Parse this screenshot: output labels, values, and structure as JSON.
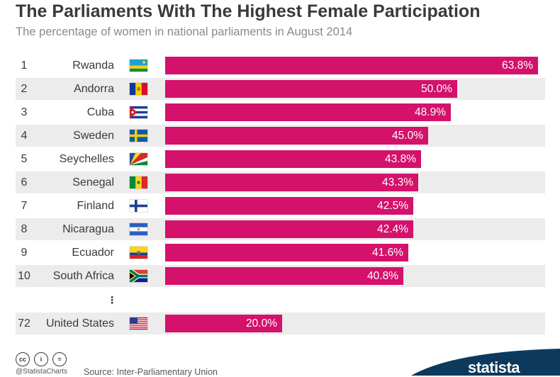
{
  "chart_data": {
    "type": "bar",
    "orientation": "horizontal",
    "title": "The Parliaments With The Highest Female Participation",
    "subtitle": "The percentage of women in national parliaments in August 2014",
    "rows": [
      {
        "rank": "1",
        "country": "Rwanda",
        "flag": "rwanda-flag-icon",
        "value": 63.8,
        "label": "63.8%"
      },
      {
        "rank": "2",
        "country": "Andorra",
        "flag": "andorra-flag-icon",
        "value": 50.0,
        "label": "50.0%"
      },
      {
        "rank": "3",
        "country": "Cuba",
        "flag": "cuba-flag-icon",
        "value": 48.9,
        "label": "48.9%"
      },
      {
        "rank": "4",
        "country": "Sweden",
        "flag": "sweden-flag-icon",
        "value": 45.0,
        "label": "45.0%"
      },
      {
        "rank": "5",
        "country": "Seychelles",
        "flag": "seychelles-flag-icon",
        "value": 43.8,
        "label": "43.8%"
      },
      {
        "rank": "6",
        "country": "Senegal",
        "flag": "senegal-flag-icon",
        "value": 43.3,
        "label": "43.3%"
      },
      {
        "rank": "7",
        "country": "Finland",
        "flag": "finland-flag-icon",
        "value": 42.5,
        "label": "42.5%"
      },
      {
        "rank": "8",
        "country": "Nicaragua",
        "flag": "nicaragua-flag-icon",
        "value": 42.4,
        "label": "42.4%"
      },
      {
        "rank": "9",
        "country": "Ecuador",
        "flag": "ecuador-flag-icon",
        "value": 41.6,
        "label": "41.6%"
      },
      {
        "rank": "10",
        "country": "South Africa",
        "flag": "south-africa-flag-icon",
        "value": 40.8,
        "label": "40.8%"
      },
      {
        "rank": "72",
        "country": "United States",
        "flag": "united-states-flag-icon",
        "value": 20.0,
        "label": "20.0%"
      }
    ],
    "ellipsis": "⋮",
    "value_range": [
      0,
      63.8
    ],
    "grid": false,
    "legend": "none",
    "colors": {
      "bar": "#d4116b",
      "band": "#ececec",
      "text": "#3a3a3a"
    }
  },
  "footer": {
    "handle": "@StatistaCharts",
    "source": "Source: Inter-Parliamentary Union",
    "license_icons": [
      "cc-icon",
      "attribution-icon",
      "no-derivatives-icon"
    ],
    "license_glyphs": [
      "cc",
      "i",
      "="
    ],
    "logo": "statista",
    "logo_color": "#0d3a5c"
  }
}
